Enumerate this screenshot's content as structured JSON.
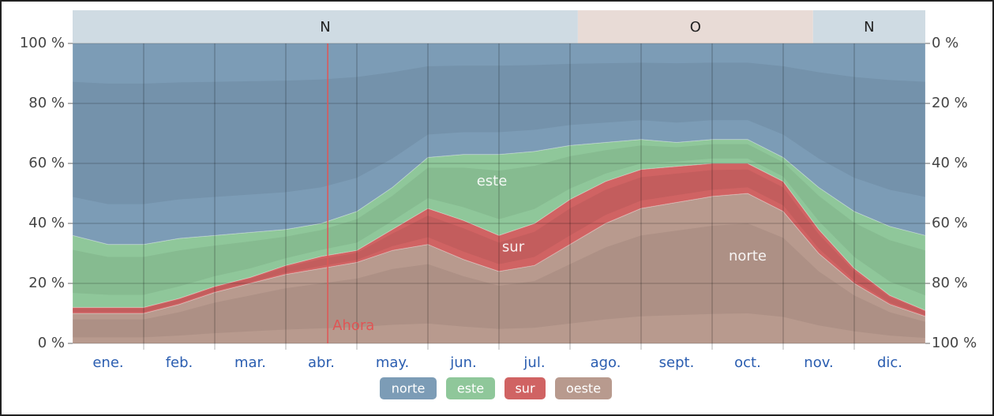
{
  "chart_data": {
    "type": "stacked-area",
    "x": [
      0,
      0.5,
      1,
      1.5,
      2,
      2.5,
      3,
      3.5,
      4,
      4.5,
      5,
      5.5,
      6,
      6.5,
      7,
      7.5,
      8,
      8.5,
      9,
      9.5,
      10,
      10.5,
      11,
      11.5,
      12
    ],
    "xlim": [
      0,
      12
    ],
    "months": [
      "ene.",
      "feb.",
      "mar.",
      "abr.",
      "may.",
      "jun.",
      "jul.",
      "ago.",
      "sept.",
      "oct.",
      "nov.",
      "dic."
    ],
    "series": [
      {
        "name": "oeste",
        "color": "#b89a8e",
        "values": [
          10,
          10,
          10,
          13,
          17,
          20,
          23,
          25,
          27,
          31,
          33,
          28,
          24,
          26,
          33,
          40,
          45,
          47,
          49,
          50,
          44,
          30,
          20,
          13,
          9
        ]
      },
      {
        "name": "sur",
        "color": "#d06363",
        "values": [
          2,
          2,
          2,
          2,
          2,
          2,
          3,
          4,
          4,
          7,
          12,
          13,
          12,
          14,
          15,
          14,
          13,
          12,
          11,
          10,
          10,
          8,
          5,
          3,
          2
        ]
      },
      {
        "name": "este",
        "color": "#8fc79a",
        "values": [
          24,
          21,
          21,
          20,
          17,
          15,
          12,
          11,
          13,
          14,
          17,
          22,
          27,
          24,
          18,
          13,
          10,
          8,
          8,
          8,
          8,
          14,
          19,
          23,
          25
        ]
      },
      {
        "name": "norte",
        "color": "#7c9cb6",
        "values": [
          64,
          67,
          67,
          65,
          64,
          63,
          62,
          60,
          56,
          48,
          38,
          37,
          37,
          36,
          34,
          33,
          32,
          33,
          32,
          32,
          38,
          48,
          56,
          61,
          64
        ]
      }
    ],
    "ylim": [
      0,
      100
    ],
    "yticks": [
      {
        "value": 0,
        "label": "0 %"
      },
      {
        "value": 20,
        "label": "20 %"
      },
      {
        "value": 40,
        "label": "40 %"
      },
      {
        "value": 60,
        "label": "60 %"
      },
      {
        "value": 80,
        "label": "80 %"
      },
      {
        "value": 100,
        "label": "100 %"
      }
    ],
    "y2lim": [
      100,
      0
    ],
    "y2ticks": [
      {
        "value": 0,
        "label": "0 %"
      },
      {
        "value": 20,
        "label": "20 %"
      },
      {
        "value": 40,
        "label": "40 %"
      },
      {
        "value": 60,
        "label": "60 %"
      },
      {
        "value": 80,
        "label": "80 %"
      },
      {
        "value": 100,
        "label": "100 %"
      }
    ],
    "seasons": [
      {
        "label": "N",
        "start": 0,
        "end": 7.11,
        "color": "#cfdbe3"
      },
      {
        "label": "O",
        "start": 7.11,
        "end": 10.42,
        "color": "#e8dbd6"
      },
      {
        "label": "N",
        "start": 10.42,
        "end": 12,
        "color": "#cfdbe3"
      }
    ],
    "now": {
      "label": "Ahora",
      "x": 3.59,
      "color": "#e05555"
    },
    "grid": true
  }
}
